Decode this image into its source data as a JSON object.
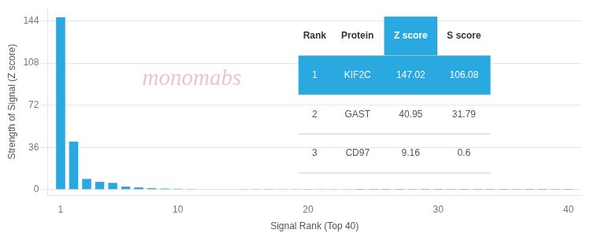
{
  "chart_data": {
    "type": "bar",
    "x": [
      1,
      2,
      3,
      4,
      5,
      6,
      7,
      8,
      9,
      10,
      11,
      12,
      13,
      14,
      15,
      16,
      17,
      18,
      19,
      20,
      21,
      22,
      23,
      24,
      25,
      26,
      27,
      28,
      29,
      30,
      31,
      32,
      33,
      34,
      35,
      36,
      37,
      38,
      39,
      40
    ],
    "values": [
      147.02,
      40.95,
      9.16,
      6.5,
      5.8,
      2.5,
      1.8,
      1.2,
      0.9,
      0.7,
      0.5,
      0.4,
      0.35,
      0.3,
      0.25,
      0.22,
      0.2,
      0.18,
      0.16,
      0.14,
      0.12,
      0.11,
      0.1,
      0.09,
      0.08,
      0.08,
      0.07,
      0.07,
      0.06,
      0.06,
      0.05,
      0.05,
      0.05,
      0.04,
      0.04,
      0.04,
      0.03,
      0.03,
      0.03,
      0.02
    ],
    "color": "#29a9e0",
    "xlabel": "Signal Rank (Top 40)",
    "ylabel": "Strength of Signal (Z score)",
    "xlim": [
      0,
      41
    ],
    "xticks": [
      1,
      10,
      20,
      30,
      40
    ],
    "ylim": [
      -5,
      155
    ],
    "yticks": [
      0,
      36,
      72,
      108,
      144
    ],
    "grid": "y",
    "annotations": [
      {
        "text": "monomabs",
        "color": "#e8c8c8"
      }
    ],
    "table": {
      "columns": [
        "Rank",
        "Protein",
        "Z score",
        "S score"
      ],
      "rows": [
        [
          "1",
          "KIF2C",
          "147.02",
          "106.08"
        ],
        [
          "2",
          "GAST",
          "40.95",
          "31.79"
        ],
        [
          "3",
          "CD97",
          "9.16",
          "0.6"
        ]
      ],
      "color": "#29a9e0"
    }
  }
}
